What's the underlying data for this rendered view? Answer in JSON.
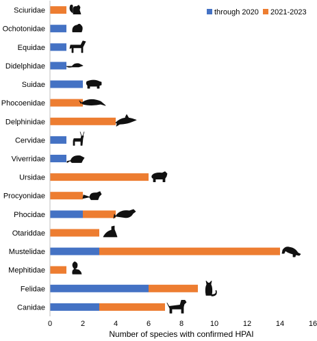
{
  "chart_data": {
    "type": "bar",
    "orientation": "horizontal",
    "stacked": true,
    "categories": [
      "Sciuridae",
      "Ochotonidae",
      "Equidae",
      "Didelphidae",
      "Suidae",
      "Phocoenidae",
      "Delphinidae",
      "Cervidae",
      "Viverridae",
      "Ursidae",
      "Procyonidae",
      "Phocidae",
      "Otariddae",
      "Mustelidae",
      "Mephitidae",
      "Felidae",
      "Canidae"
    ],
    "series": [
      {
        "name": "through 2020",
        "color": "#4472c4",
        "values": [
          0,
          1,
          1,
          1,
          2,
          0,
          0,
          1,
          1,
          0,
          0,
          2,
          0,
          3,
          0,
          6,
          3
        ]
      },
      {
        "name": "2021-2023",
        "color": "#ed7d31",
        "values": [
          1,
          0,
          0,
          0,
          0,
          2,
          4,
          0,
          0,
          6,
          2,
          2,
          3,
          11,
          1,
          3,
          4
        ]
      }
    ],
    "icons": [
      "squirrel-icon",
      "pika-icon",
      "horse-icon",
      "opossum-icon",
      "pig-icon",
      "porpoise-icon",
      "dolphin-icon",
      "deer-icon",
      "civet-icon",
      "bear-icon",
      "raccoon-icon",
      "seal-icon",
      "sea-lion-icon",
      "ferret-icon",
      "skunk-icon",
      "cat-icon",
      "dog-icon"
    ],
    "xlabel": "Number of species with confirmed HPAI",
    "ylabel": "",
    "xlim": [
      0,
      16
    ],
    "xticks": [
      0,
      2,
      4,
      6,
      8,
      10,
      12,
      14,
      16
    ],
    "grid": false,
    "legend_position": "top-right"
  }
}
